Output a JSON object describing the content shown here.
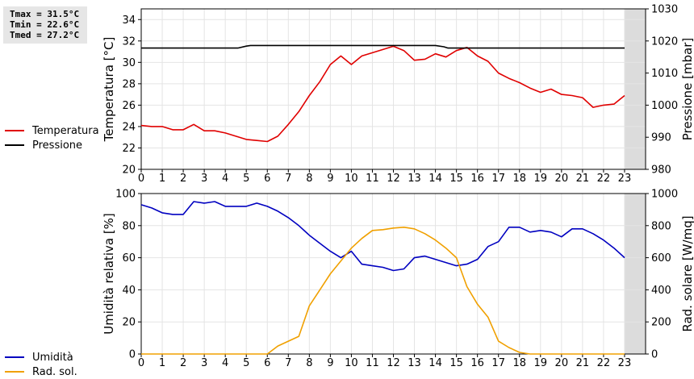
{
  "stats": {
    "tmax": "Tmax = 31.5°C",
    "tmin": "Tmin = 22.6°C",
    "tmed": "Tmed = 27.2°C"
  },
  "colors": {
    "temperature": "#e00000",
    "pressure": "#000000",
    "humidity": "#0000c0",
    "radiation": "#f0a000",
    "future_band": "#dcdcdc"
  },
  "chart_data": [
    {
      "type": "line",
      "x_ticks": [
        "0",
        "1",
        "2",
        "3",
        "4",
        "5",
        "6",
        "7",
        "8",
        "9",
        "10",
        "11",
        "12",
        "13",
        "14",
        "15",
        "16",
        "17",
        "18",
        "19",
        "20",
        "21",
        "22",
        "23"
      ],
      "xlim": [
        0,
        24
      ],
      "shaded_from": 23,
      "ylabel": "Temperatura [°C]",
      "ylabel_right": "Pressione [mbar]",
      "ylim": [
        20,
        35
      ],
      "ylim_right": [
        980,
        1030
      ],
      "y_ticks": [
        "20",
        "22",
        "24",
        "26",
        "28",
        "30",
        "32",
        "34"
      ],
      "y_ticks_right": [
        "980",
        "990",
        "1000",
        "1010",
        "1020",
        "1030"
      ],
      "grid": true,
      "series": [
        {
          "name": "Temperatura",
          "axis": "left",
          "color": "#e00000",
          "x": [
            0,
            0.5,
            1,
            1.5,
            2,
            2.5,
            3,
            3.5,
            4,
            4.5,
            5,
            5.5,
            6,
            6.5,
            7,
            7.5,
            8,
            8.5,
            9,
            9.5,
            10,
            10.5,
            11,
            11.5,
            12,
            12.5,
            13,
            13.5,
            14,
            14.5,
            15,
            15.5,
            16,
            16.5,
            17,
            17.5,
            18,
            18.5,
            19,
            19.5,
            20,
            20.5,
            21,
            21.5,
            22,
            22.5,
            23
          ],
          "values": [
            24.1,
            24.0,
            24.0,
            23.7,
            23.7,
            24.2,
            23.6,
            23.6,
            23.4,
            23.1,
            22.8,
            22.7,
            22.6,
            23.1,
            24.2,
            25.4,
            26.9,
            28.2,
            29.8,
            30.6,
            29.8,
            30.6,
            30.9,
            31.2,
            31.5,
            31.1,
            30.2,
            30.3,
            30.8,
            30.5,
            31.1,
            31.4,
            30.6,
            30.1,
            29.0,
            28.5,
            28.1,
            27.6,
            27.2,
            27.5,
            27.0,
            26.9,
            26.7,
            25.8,
            26.0,
            26.1,
            26.9
          ]
        },
        {
          "name": "Pressione",
          "axis": "right",
          "color": "#000000",
          "x": [
            0,
            4.6,
            5,
            5.2,
            14,
            14.4,
            14.6,
            23
          ],
          "values": [
            1017.8,
            1017.8,
            1018.4,
            1018.6,
            1018.6,
            1018.2,
            1017.8,
            1017.8
          ]
        }
      ]
    },
    {
      "type": "line",
      "x_ticks": [
        "0",
        "1",
        "2",
        "3",
        "4",
        "5",
        "6",
        "7",
        "8",
        "9",
        "10",
        "11",
        "12",
        "13",
        "14",
        "15",
        "16",
        "17",
        "18",
        "19",
        "20",
        "21",
        "22",
        "23"
      ],
      "xlim": [
        0,
        24
      ],
      "shaded_from": 23,
      "ylabel": "Umidità relativa [%]",
      "ylabel_right": "Rad. solare [W/mq]",
      "ylim": [
        0,
        100
      ],
      "ylim_right": [
        0,
        1000
      ],
      "y_ticks": [
        "0",
        "20",
        "40",
        "60",
        "80",
        "100"
      ],
      "y_ticks_right": [
        "0",
        "200",
        "400",
        "600",
        "800",
        "1000"
      ],
      "grid": true,
      "series": [
        {
          "name": "Umidità",
          "axis": "left",
          "color": "#0000c0",
          "x": [
            0,
            0.5,
            1,
            1.5,
            2,
            2.5,
            3,
            3.5,
            4,
            4.5,
            5,
            5.5,
            6,
            6.5,
            7,
            7.5,
            8,
            8.5,
            9,
            9.5,
            10,
            10.5,
            11,
            11.5,
            12,
            12.5,
            13,
            13.5,
            14,
            14.5,
            15,
            15.5,
            16,
            16.5,
            17,
            17.5,
            18,
            18.5,
            19,
            19.5,
            20,
            20.5,
            21,
            21.5,
            22,
            22.5,
            23
          ],
          "values": [
            93,
            91,
            88,
            87,
            87,
            95,
            94,
            95,
            92,
            92,
            92,
            94,
            92,
            89,
            85,
            80,
            74,
            69,
            64,
            60,
            64,
            56,
            55,
            54,
            52,
            53,
            60,
            61,
            59,
            57,
            55,
            56,
            59,
            67,
            70,
            79,
            79,
            76,
            77,
            76,
            73,
            78,
            78,
            75,
            71,
            66,
            60
          ]
        },
        {
          "name": "Rad. sol.",
          "axis": "right",
          "color": "#f0a000",
          "x": [
            0,
            1,
            2,
            3,
            4,
            5,
            5.5,
            6,
            6.5,
            7,
            7.5,
            8,
            8.5,
            9,
            9.5,
            10,
            10.5,
            11,
            11.5,
            12,
            12.5,
            13,
            13.5,
            14,
            14.5,
            15,
            15.5,
            16,
            16.5,
            17,
            17.5,
            18,
            18.5,
            19,
            20,
            21,
            22,
            23
          ],
          "values": [
            0,
            0,
            0,
            0,
            0,
            0,
            0,
            0,
            50,
            80,
            110,
            300,
            400,
            500,
            580,
            660,
            720,
            770,
            775,
            785,
            790,
            780,
            750,
            710,
            660,
            600,
            420,
            310,
            230,
            80,
            40,
            10,
            0,
            0,
            0,
            0,
            0,
            0
          ]
        }
      ]
    }
  ]
}
